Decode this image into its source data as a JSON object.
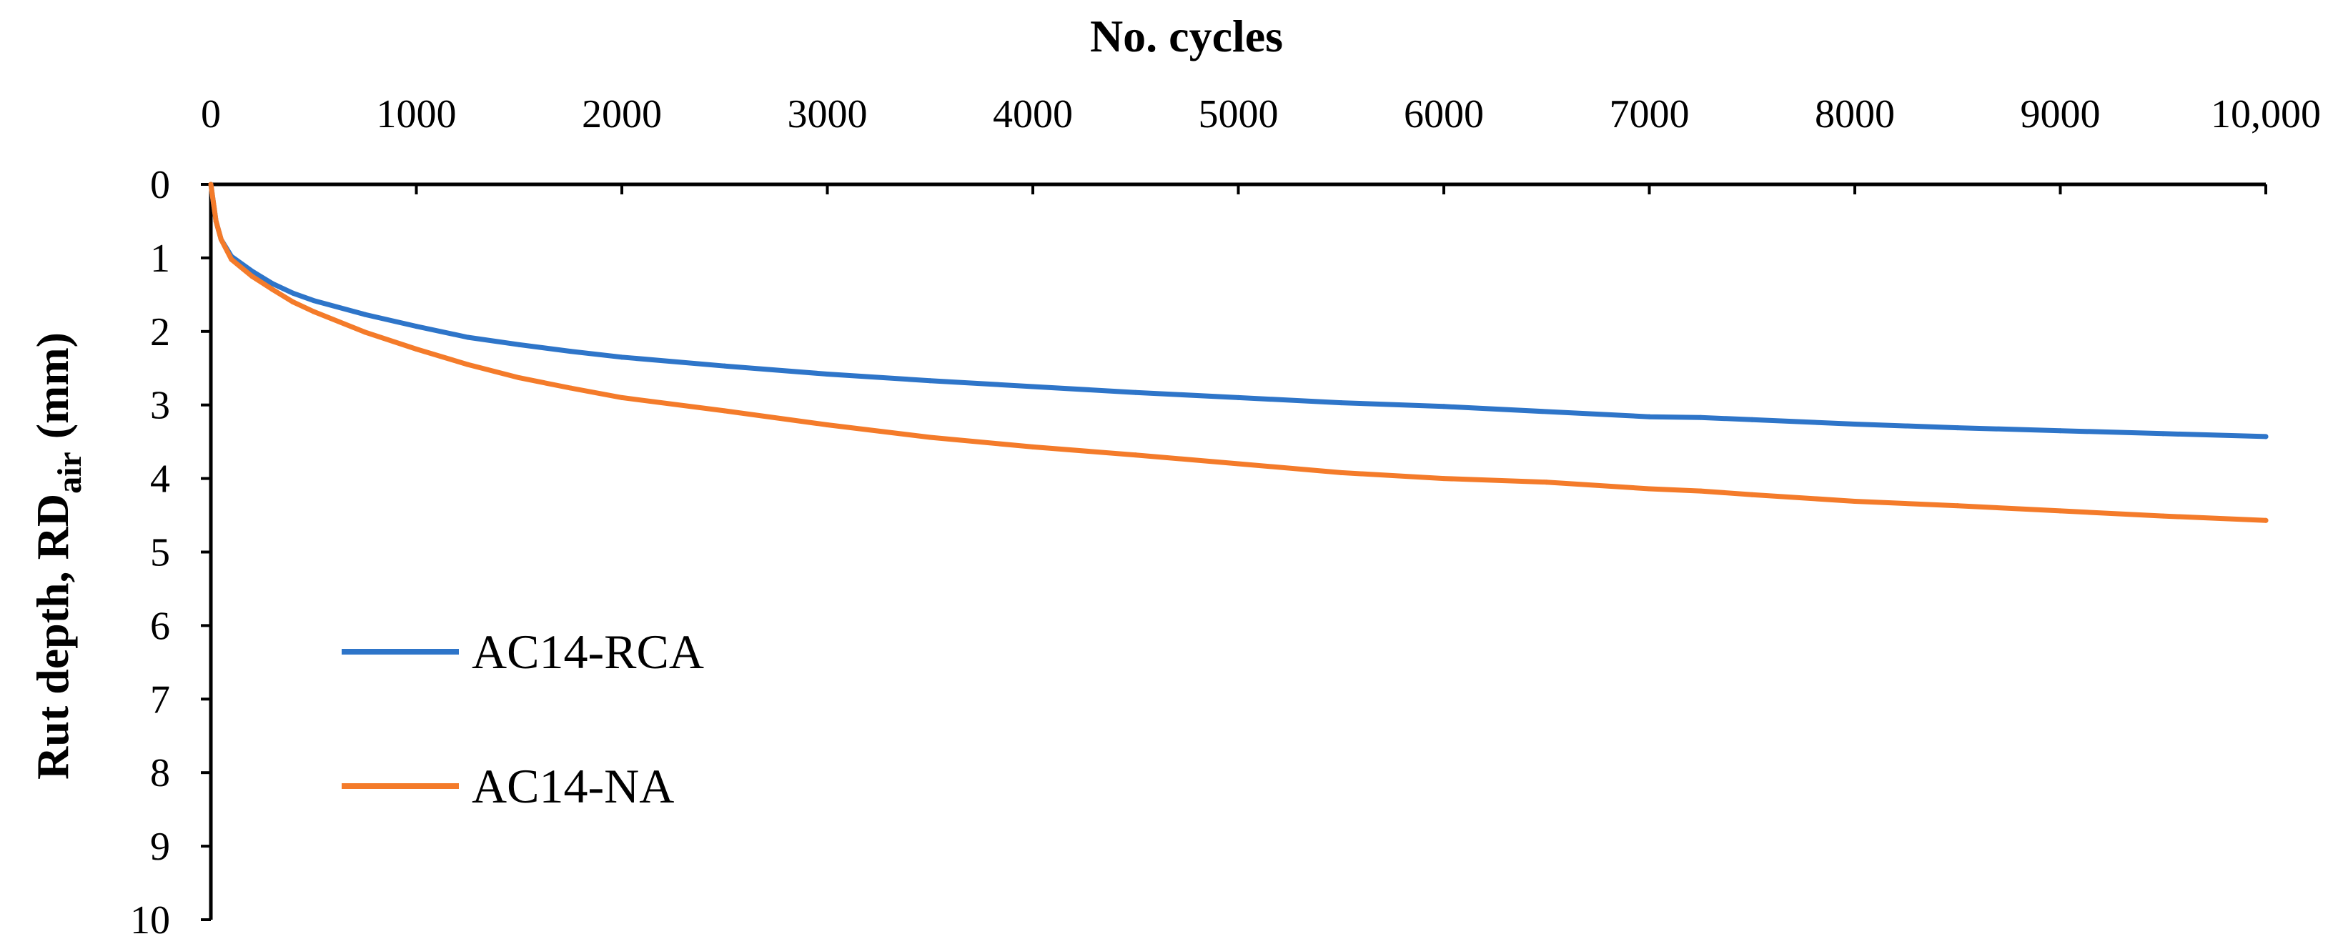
{
  "chart_data": {
    "type": "line",
    "title": "",
    "xlabel": "No. cycles",
    "ylabel": "Rut depth, RD",
    "ylabel_subscript": "air",
    "ylabel_unit": "(mm)",
    "xlim": [
      0,
      10000
    ],
    "ylim": [
      0,
      10
    ],
    "y_inverted": true,
    "x_axis_position": "top",
    "grid": false,
    "legend_position": "bottom-left",
    "x_ticks": [
      {
        "value": 0,
        "label": "0"
      },
      {
        "value": 1000,
        "label": "1000"
      },
      {
        "value": 2000,
        "label": "2000"
      },
      {
        "value": 3000,
        "label": "3000"
      },
      {
        "value": 4000,
        "label": "4000"
      },
      {
        "value": 5000,
        "label": "5000"
      },
      {
        "value": 6000,
        "label": "6000"
      },
      {
        "value": 7000,
        "label": "7000"
      },
      {
        "value": 8000,
        "label": "8000"
      },
      {
        "value": 9000,
        "label": "9000"
      },
      {
        "value": 10000,
        "label": "10,000"
      }
    ],
    "y_ticks": [
      {
        "value": 0,
        "label": "0"
      },
      {
        "value": 1,
        "label": "1"
      },
      {
        "value": 2,
        "label": "2"
      },
      {
        "value": 3,
        "label": "3"
      },
      {
        "value": 4,
        "label": "4"
      },
      {
        "value": 5,
        "label": "5"
      },
      {
        "value": 6,
        "label": "6"
      },
      {
        "value": 7,
        "label": "7"
      },
      {
        "value": 8,
        "label": "8"
      },
      {
        "value": 9,
        "label": "9"
      },
      {
        "value": 10,
        "label": "10"
      }
    ],
    "x": [
      0,
      25,
      50,
      100,
      200,
      300,
      400,
      500,
      750,
      1000,
      1250,
      1500,
      1750,
      2000,
      2500,
      3000,
      3500,
      4000,
      4500,
      5000,
      5500,
      6000,
      6500,
      7000,
      7250,
      7500,
      8000,
      8500,
      9000,
      9500,
      10000
    ],
    "series": [
      {
        "name": "AC14-RCA",
        "color": "#2E75C9",
        "values": [
          0,
          0.5,
          0.75,
          0.98,
          1.18,
          1.35,
          1.48,
          1.58,
          1.77,
          1.93,
          2.08,
          2.18,
          2.27,
          2.35,
          2.47,
          2.58,
          2.67,
          2.75,
          2.83,
          2.9,
          2.97,
          3.02,
          3.09,
          3.16,
          3.17,
          3.2,
          3.26,
          3.31,
          3.35,
          3.39,
          3.43
        ]
      },
      {
        "name": "AC14-NA",
        "color": "#F47B2A",
        "values": [
          0,
          0.5,
          0.75,
          1.02,
          1.25,
          1.43,
          1.6,
          1.73,
          2.01,
          2.24,
          2.45,
          2.63,
          2.77,
          2.9,
          3.08,
          3.27,
          3.44,
          3.57,
          3.68,
          3.8,
          3.92,
          4.0,
          4.05,
          4.14,
          4.17,
          4.22,
          4.31,
          4.37,
          4.44,
          4.51,
          4.57
        ]
      }
    ]
  }
}
